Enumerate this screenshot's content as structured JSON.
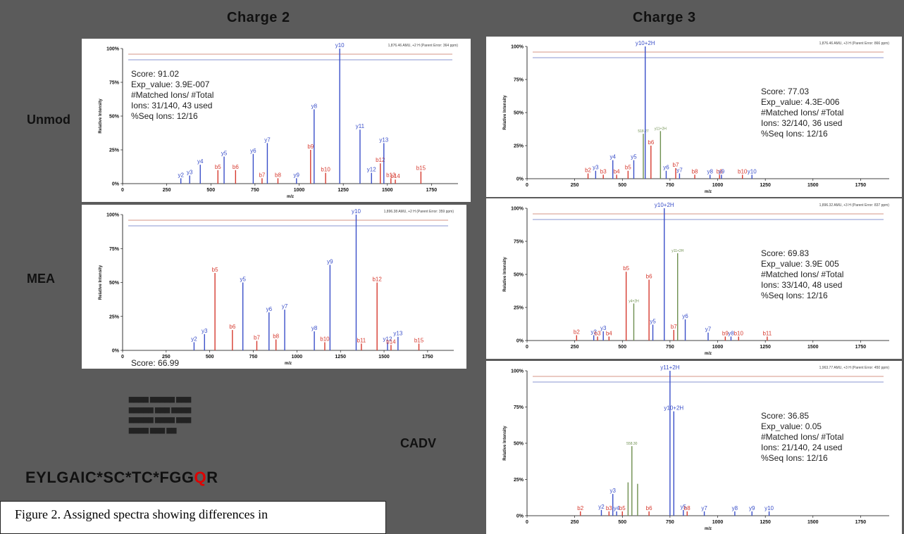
{
  "columns": {
    "charge2": "Charge 2",
    "charge3": "Charge 3"
  },
  "rows": {
    "unmod": "Unmod",
    "mea": "MEA",
    "cadv": "CADV"
  },
  "peptide": {
    "prefix": "EYLGAIC*SC*TC*FGG",
    "highlight": "Q",
    "suffix": "R"
  },
  "caption": "Figure 2. Assigned spectra showing differences in",
  "colors": {
    "y_ion": "#3a4fc9",
    "b_ion": "#d63a2f",
    "other": "#6e8f4f",
    "background": "#5b5b5b",
    "highlight": "#e00000"
  },
  "axis": {
    "ylabel": "Relative Intensity",
    "xlabel": "m/z",
    "yticks": [
      "0%",
      "25%",
      "50%",
      "75%",
      "100%"
    ]
  },
  "chart_data": [
    {
      "id": "c2-unmod",
      "type": "bar",
      "xlim": [
        0,
        1900
      ],
      "ylim": [
        0,
        100
      ],
      "xticks": [
        0,
        250,
        500,
        750,
        1000,
        1250,
        1500,
        1750
      ],
      "header": "1,876.46 AMU, +2 H (Parent Error: 364 ppm)",
      "score": [
        "Score: 91.02",
        "Exp_value: 3.9E-007",
        "#Matched Ions/ #Total",
        "Ions: 31/140, 43 used",
        "%Seq Ions: 12/16"
      ],
      "peaks": [
        {
          "x": 330,
          "y": 4,
          "label": "y2",
          "c": "y"
        },
        {
          "x": 380,
          "y": 6,
          "label": "y3",
          "c": "y"
        },
        {
          "x": 440,
          "y": 14,
          "label": "y4",
          "c": "y"
        },
        {
          "x": 540,
          "y": 10,
          "label": "b5",
          "c": "b"
        },
        {
          "x": 575,
          "y": 20,
          "label": "y5",
          "c": "y"
        },
        {
          "x": 640,
          "y": 10,
          "label": "b6",
          "c": "b"
        },
        {
          "x": 740,
          "y": 22,
          "label": "y6",
          "c": "y"
        },
        {
          "x": 790,
          "y": 4,
          "label": "b7",
          "c": "b"
        },
        {
          "x": 820,
          "y": 30,
          "label": "y7",
          "c": "y"
        },
        {
          "x": 880,
          "y": 4,
          "label": "b8",
          "c": "b"
        },
        {
          "x": 985,
          "y": 4,
          "label": "y9",
          "c": "y"
        },
        {
          "x": 1065,
          "y": 25,
          "label": "b9",
          "c": "b"
        },
        {
          "x": 1085,
          "y": 55,
          "label": "y8",
          "c": "y"
        },
        {
          "x": 1150,
          "y": 8,
          "label": "b10",
          "c": "b"
        },
        {
          "x": 1230,
          "y": 100,
          "label": "y10",
          "c": "y"
        },
        {
          "x": 1345,
          "y": 40,
          "label": "y11",
          "c": "y"
        },
        {
          "x": 1410,
          "y": 8,
          "label": "y12",
          "c": "y"
        },
        {
          "x": 1460,
          "y": 15,
          "label": "b12",
          "c": "b"
        },
        {
          "x": 1480,
          "y": 30,
          "label": "y13",
          "c": "y"
        },
        {
          "x": 1520,
          "y": 4,
          "label": "b13",
          "c": "b"
        },
        {
          "x": 1545,
          "y": 3,
          "label": "b14",
          "c": "b"
        },
        {
          "x": 1690,
          "y": 9,
          "label": "b15",
          "c": "b"
        }
      ]
    },
    {
      "id": "c2-mea",
      "type": "bar",
      "xlim": [
        0,
        1900
      ],
      "ylim": [
        0,
        100
      ],
      "xticks": [
        0,
        250,
        500,
        750,
        1000,
        1250,
        1500,
        1750
      ],
      "header": "1,896.38 AMU, +2 H (Parent Error: 359 ppm)",
      "score": [
        "Score: 66.99"
      ],
      "peaks": [
        {
          "x": 410,
          "y": 6,
          "label": "y2",
          "c": "y"
        },
        {
          "x": 470,
          "y": 12,
          "label": "y3",
          "c": "y"
        },
        {
          "x": 530,
          "y": 57,
          "label": "b5",
          "c": "b"
        },
        {
          "x": 630,
          "y": 15,
          "label": "b6",
          "c": "b"
        },
        {
          "x": 690,
          "y": 50,
          "label": "y5",
          "c": "y"
        },
        {
          "x": 770,
          "y": 7,
          "label": "b7",
          "c": "b"
        },
        {
          "x": 840,
          "y": 28,
          "label": "y6",
          "c": "y"
        },
        {
          "x": 880,
          "y": 8,
          "label": "b8",
          "c": "b"
        },
        {
          "x": 930,
          "y": 30,
          "label": "y7",
          "c": "y"
        },
        {
          "x": 1100,
          "y": 14,
          "label": "y8",
          "c": "y"
        },
        {
          "x": 1160,
          "y": 6,
          "label": "b10",
          "c": "b"
        },
        {
          "x": 1190,
          "y": 63,
          "label": "y9",
          "c": "y"
        },
        {
          "x": 1340,
          "y": 100,
          "label": "y10",
          "c": "y"
        },
        {
          "x": 1370,
          "y": 5,
          "label": "b11",
          "c": "b"
        },
        {
          "x": 1460,
          "y": 50,
          "label": "b12",
          "c": "b"
        },
        {
          "x": 1520,
          "y": 6,
          "label": "y12",
          "c": "y"
        },
        {
          "x": 1540,
          "y": 4,
          "label": "b14",
          "c": "b"
        },
        {
          "x": 1580,
          "y": 10,
          "label": "y13",
          "c": "y"
        },
        {
          "x": 1700,
          "y": 5,
          "label": "b15",
          "c": "b"
        }
      ]
    },
    {
      "id": "c3-unmod",
      "type": "bar",
      "xlim": [
        0,
        1900
      ],
      "ylim": [
        0,
        100
      ],
      "xticks": [
        0,
        250,
        500,
        750,
        1000,
        1250,
        1500,
        1750
      ],
      "header": "1,876.46 AMU, +3 H (Parent Error: 866 ppm)",
      "score": [
        "Score: 77.03",
        "Exp_value: 4.3E-006",
        "#Matched Ions/ #Total",
        "Ions: 32/140, 36 used",
        "%Seq Ions: 12/16"
      ],
      "peaks": [
        {
          "x": 320,
          "y": 4,
          "label": "b2",
          "c": "b"
        },
        {
          "x": 360,
          "y": 6,
          "label": "y3",
          "c": "y"
        },
        {
          "x": 400,
          "y": 3,
          "label": "b3",
          "c": "b"
        },
        {
          "x": 450,
          "y": 14,
          "label": "y4",
          "c": "y"
        },
        {
          "x": 470,
          "y": 3,
          "label": "b4",
          "c": "b"
        },
        {
          "x": 530,
          "y": 6,
          "label": "b5",
          "c": "b"
        },
        {
          "x": 560,
          "y": 14,
          "label": "y5",
          "c": "y"
        },
        {
          "x": 610,
          "y": 34,
          "label": "518.27",
          "c": "o"
        },
        {
          "x": 620,
          "y": 100,
          "label": "y10+2H",
          "c": "y"
        },
        {
          "x": 650,
          "y": 25,
          "label": "b6",
          "c": "b"
        },
        {
          "x": 700,
          "y": 36,
          "label": "y11+2H",
          "c": "o"
        },
        {
          "x": 730,
          "y": 6,
          "label": "y6",
          "c": "y"
        },
        {
          "x": 780,
          "y": 8,
          "label": "b7",
          "c": "b"
        },
        {
          "x": 800,
          "y": 4,
          "label": "y7",
          "c": "y"
        },
        {
          "x": 880,
          "y": 3,
          "label": "b8",
          "c": "b"
        },
        {
          "x": 960,
          "y": 3,
          "label": "y8",
          "c": "y"
        },
        {
          "x": 1010,
          "y": 3,
          "label": "b9",
          "c": "b"
        },
        {
          "x": 1020,
          "y": 3,
          "label": "y9",
          "c": "y"
        },
        {
          "x": 1130,
          "y": 3,
          "label": "b10",
          "c": "b"
        },
        {
          "x": 1180,
          "y": 3,
          "label": "y10",
          "c": "y"
        }
      ]
    },
    {
      "id": "c3-mea",
      "type": "bar",
      "xlim": [
        0,
        1900
      ],
      "ylim": [
        0,
        100
      ],
      "xticks": [
        0,
        250,
        500,
        750,
        1000,
        1250,
        1500,
        1750
      ],
      "header": "1,896.32 AMU, +3 H (Parent Error: 837 ppm)",
      "score": [
        "Score: 69.83",
        "Exp_value: 3.9E 005",
        "#Matched Ions/ #Total",
        "Ions: 33/140, 48 used",
        "%Seq Ions: 12/16"
      ],
      "peaks": [
        {
          "x": 260,
          "y": 4,
          "label": "b2",
          "c": "b"
        },
        {
          "x": 350,
          "y": 4,
          "label": "y2",
          "c": "y"
        },
        {
          "x": 370,
          "y": 3,
          "label": "b3",
          "c": "b"
        },
        {
          "x": 400,
          "y": 7,
          "label": "y3",
          "c": "y"
        },
        {
          "x": 430,
          "y": 3,
          "label": "b4",
          "c": "b"
        },
        {
          "x": 520,
          "y": 52,
          "label": "b5",
          "c": "b"
        },
        {
          "x": 560,
          "y": 28,
          "label": "y4+2H",
          "c": "o"
        },
        {
          "x": 640,
          "y": 46,
          "label": "b6",
          "c": "b"
        },
        {
          "x": 660,
          "y": 12,
          "label": "y5",
          "c": "y"
        },
        {
          "x": 720,
          "y": 100,
          "label": "y10+2H",
          "c": "y"
        },
        {
          "x": 770,
          "y": 8,
          "label": "b7",
          "c": "b"
        },
        {
          "x": 790,
          "y": 66,
          "label": "y11+2H",
          "c": "o"
        },
        {
          "x": 830,
          "y": 16,
          "label": "y6",
          "c": "y"
        },
        {
          "x": 950,
          "y": 6,
          "label": "y7",
          "c": "y"
        },
        {
          "x": 1040,
          "y": 3,
          "label": "b9",
          "c": "b"
        },
        {
          "x": 1070,
          "y": 3,
          "label": "y8",
          "c": "y"
        },
        {
          "x": 1110,
          "y": 3,
          "label": "b10",
          "c": "b"
        },
        {
          "x": 1260,
          "y": 3,
          "label": "b11",
          "c": "b"
        }
      ]
    },
    {
      "id": "c3-cadv",
      "type": "bar",
      "xlim": [
        0,
        1900
      ],
      "ylim": [
        0,
        100
      ],
      "xticks": [
        0,
        250,
        500,
        750,
        1000,
        1250,
        1500,
        1750
      ],
      "header": "1,963.77 AMU, +3 H (Parent Error: 450 ppm)",
      "score": [
        "Score: 36.85",
        "Exp_value: 0.05",
        "#Matched Ions/ #Total",
        "Ions: 21/140, 24 used",
        "%Seq Ions: 12/16"
      ],
      "peaks": [
        {
          "x": 280,
          "y": 3,
          "label": "b2",
          "c": "b"
        },
        {
          "x": 390,
          "y": 4,
          "label": "y2",
          "c": "y"
        },
        {
          "x": 430,
          "y": 3,
          "label": "b3",
          "c": "b"
        },
        {
          "x": 450,
          "y": 15,
          "label": "y3",
          "c": "y"
        },
        {
          "x": 470,
          "y": 3,
          "label": "y4",
          "c": "y"
        },
        {
          "x": 500,
          "y": 3,
          "label": "b5",
          "c": "b"
        },
        {
          "x": 530,
          "y": 23,
          "label": "",
          "c": "o"
        },
        {
          "x": 550,
          "y": 48,
          "label": "558.30",
          "c": "o"
        },
        {
          "x": 580,
          "y": 22,
          "label": "",
          "c": "o"
        },
        {
          "x": 640,
          "y": 3,
          "label": "b6",
          "c": "b"
        },
        {
          "x": 750,
          "y": 100,
          "label": "y11+2H",
          "c": "y"
        },
        {
          "x": 770,
          "y": 72,
          "label": "y10+2H",
          "c": "y"
        },
        {
          "x": 820,
          "y": 4,
          "label": "y5",
          "c": "y"
        },
        {
          "x": 840,
          "y": 3,
          "label": "b8",
          "c": "b"
        },
        {
          "x": 930,
          "y": 3,
          "label": "y7",
          "c": "y"
        },
        {
          "x": 1090,
          "y": 3,
          "label": "y8",
          "c": "y"
        },
        {
          "x": 1180,
          "y": 3,
          "label": "y9",
          "c": "y"
        },
        {
          "x": 1270,
          "y": 3,
          "label": "y10",
          "c": "y"
        }
      ]
    }
  ]
}
